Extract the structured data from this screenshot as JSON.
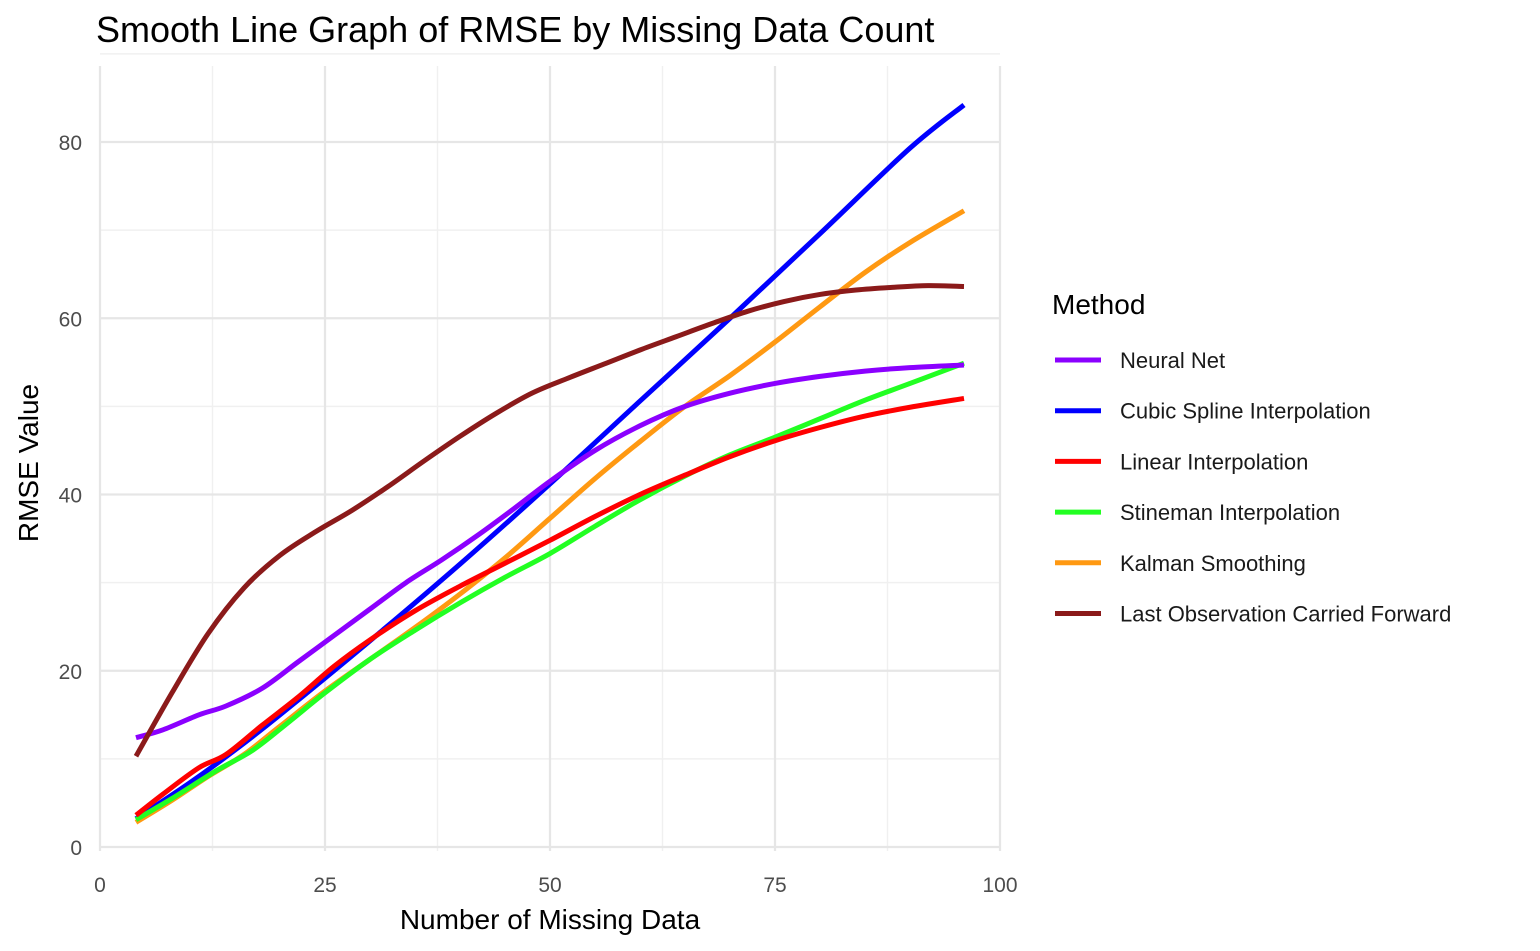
{
  "chart_data": {
    "type": "line",
    "title": "Smooth Line Graph of RMSE by Missing Data Count",
    "xlabel": "Number of Missing Data",
    "ylabel": "RMSE Value",
    "xlim": [
      0,
      100
    ],
    "ylim": [
      0,
      88
    ],
    "x_ticks": [
      0,
      25,
      50,
      75,
      100
    ],
    "y_ticks": [
      0,
      20,
      40,
      60,
      80
    ],
    "x_tick_labels": [
      "0",
      "25",
      "50",
      "75",
      "100"
    ],
    "y_tick_labels": [
      "0",
      "20",
      "40",
      "60",
      "80"
    ],
    "grid": true,
    "legend_title": "Method",
    "legend_position": "right",
    "series": [
      {
        "name": "Neural Net",
        "color": "#8B00FF",
        "x": [
          4,
          7,
          11,
          14,
          18,
          22,
          26,
          30,
          34,
          38,
          42,
          46,
          50,
          55,
          60,
          65,
          70,
          75,
          80,
          85,
          90,
          96
        ],
        "y": [
          12.4,
          13.3,
          15,
          16,
          18,
          21,
          24,
          27,
          30,
          32.6,
          35.4,
          38.4,
          41.5,
          45,
          47.8,
          50,
          51.5,
          52.6,
          53.4,
          54,
          54.4,
          54.7
        ]
      },
      {
        "name": "Cubic Spline Interpolation",
        "color": "#0000FF",
        "x": [
          4,
          10,
          15,
          20,
          30,
          40,
          50,
          60,
          70,
          80,
          90,
          96
        ],
        "y": [
          3.2,
          7.3,
          11,
          15,
          23.4,
          32.1,
          41.2,
          50.6,
          60,
          69.6,
          79.3,
          84.2
        ]
      },
      {
        "name": "Linear Interpolation",
        "color": "#FF0000",
        "x": [
          4,
          7,
          11,
          14,
          18,
          22,
          26,
          30,
          35,
          40,
          45,
          50,
          55,
          60,
          65,
          70,
          75,
          80,
          85,
          90,
          96
        ],
        "y": [
          3.6,
          6,
          9,
          10.5,
          13.8,
          17,
          20.5,
          23.5,
          26.8,
          29.6,
          32.2,
          34.8,
          37.5,
          40,
          42.2,
          44.3,
          46.1,
          47.6,
          48.9,
          49.9,
          50.9
        ]
      },
      {
        "name": "Stineman Interpolation",
        "color": "#22FF22",
        "x": [
          4,
          8,
          13,
          17,
          21,
          25,
          30,
          35,
          40,
          45,
          50,
          55,
          60,
          65,
          70,
          75,
          80,
          85,
          90,
          96
        ],
        "y": [
          3.1,
          5.5,
          8.7,
          11,
          14.2,
          17.5,
          21.3,
          24.6,
          27.7,
          30.6,
          33.3,
          36.4,
          39.4,
          42.1,
          44.5,
          46.5,
          48.6,
          50.7,
          52.6,
          54.9
        ]
      },
      {
        "name": "Kalman Smoothing",
        "color": "#FF9912",
        "x": [
          4,
          8,
          12,
          16,
          20,
          25,
          30,
          35,
          40,
          45,
          50,
          55,
          60,
          65,
          70,
          75,
          80,
          85,
          90,
          96
        ],
        "y": [
          2.8,
          5.3,
          8,
          10.5,
          13.7,
          17.7,
          21.3,
          24.9,
          28.7,
          32.8,
          37.3,
          41.8,
          46,
          50,
          53.5,
          57.3,
          61.3,
          65.2,
          68.6,
          72.2
        ]
      },
      {
        "name": "Last Observation Carried Forward",
        "color": "#8B1A1A",
        "x": [
          4,
          8,
          12,
          16,
          20,
          24,
          28,
          32,
          36,
          40,
          44,
          48,
          52,
          56,
          60,
          64,
          68,
          72,
          76,
          80,
          84,
          88,
          92,
          96
        ],
        "y": [
          10.3,
          17.5,
          24.2,
          29.4,
          33.1,
          35.8,
          38.2,
          40.9,
          43.8,
          46.6,
          49.2,
          51.5,
          53.2,
          54.8,
          56.4,
          57.9,
          59.4,
          60.8,
          61.9,
          62.7,
          63.2,
          63.5,
          63.7,
          63.6
        ]
      }
    ]
  }
}
